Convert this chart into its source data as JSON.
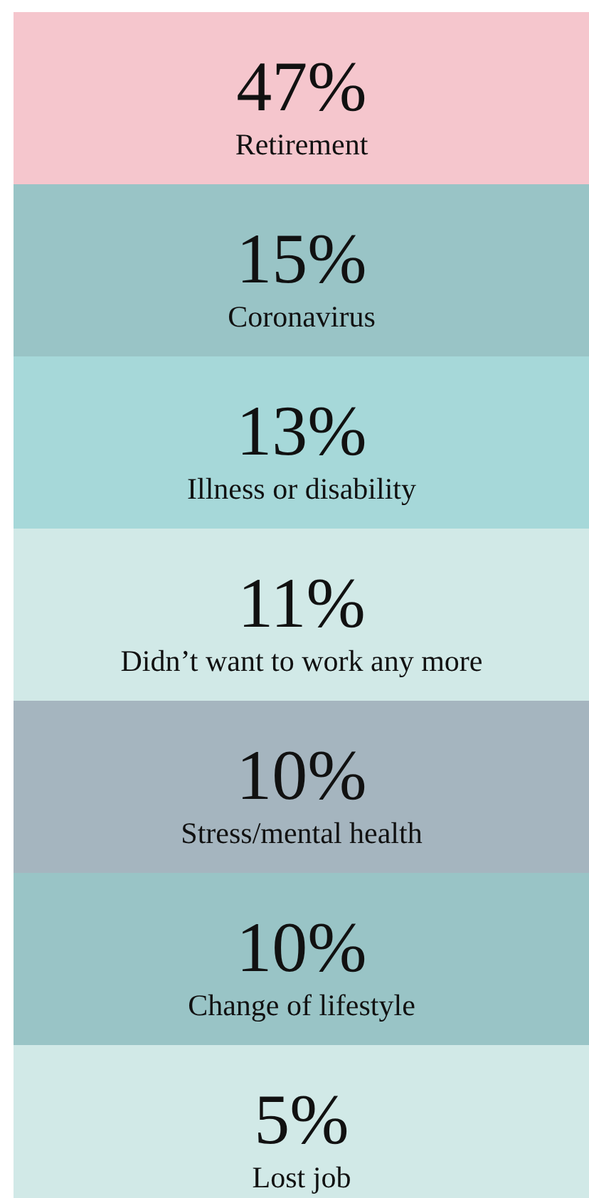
{
  "chart_data": {
    "type": "other",
    "categories": [
      "Retirement",
      "Coronavirus",
      "Illness or disability",
      "Didn’t want to work any more",
      "Stress/mental health",
      "Change of lifestyle",
      "Lost job"
    ],
    "values": [
      47,
      15,
      13,
      11,
      10,
      10,
      5
    ],
    "value_labels": [
      "47%",
      "15%",
      "13%",
      "11%",
      "10%",
      "10%",
      "5%"
    ],
    "colors": [
      "#f5c6cd",
      "#99c4c6",
      "#a6d8d9",
      "#d1e9e7",
      "#a5b5bf",
      "#99c4c6",
      "#d1e9e7"
    ]
  }
}
